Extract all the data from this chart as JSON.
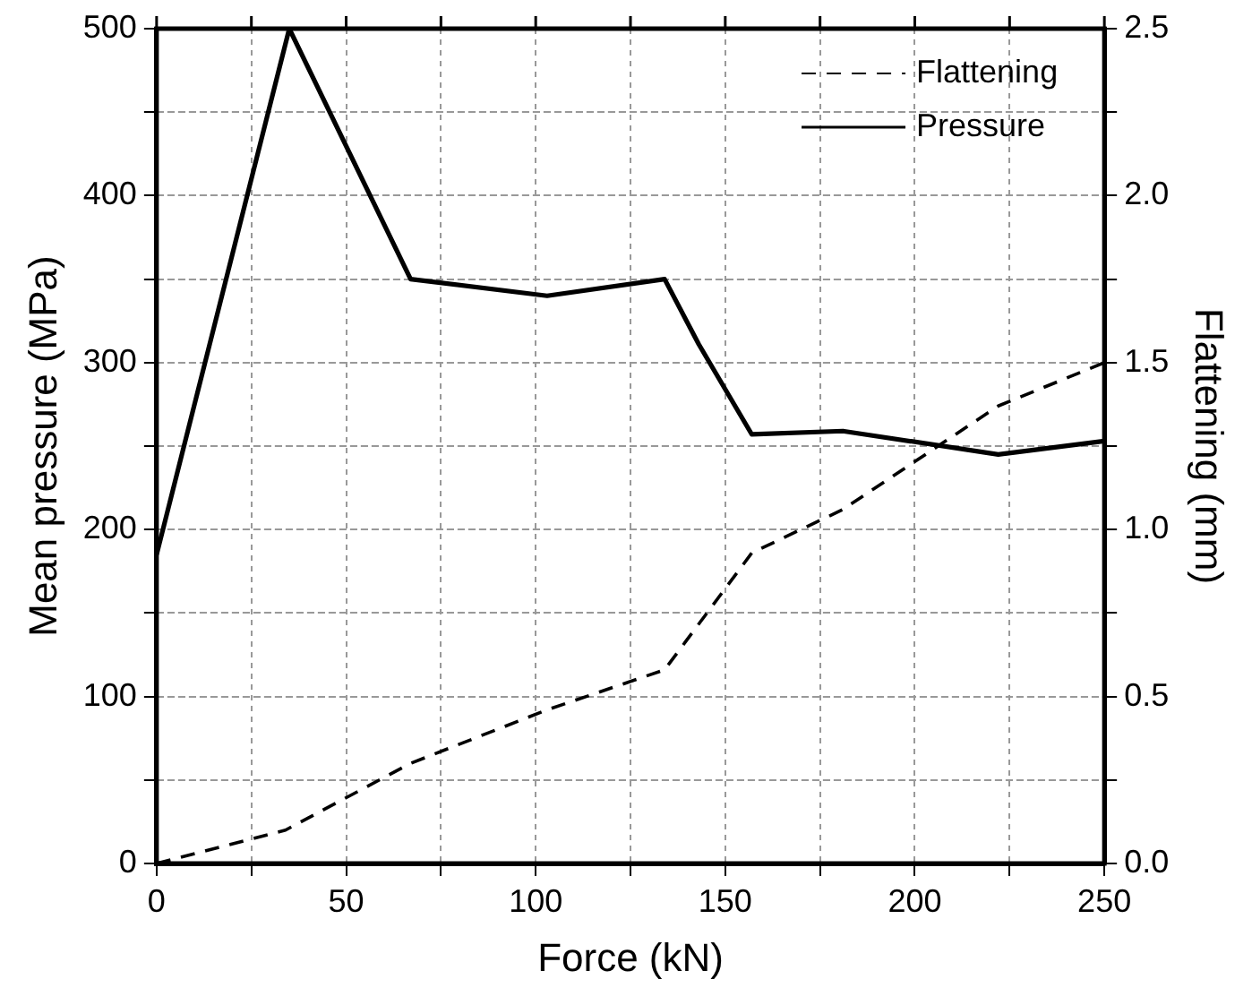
{
  "chart_data": {
    "type": "line",
    "xlabel": "Force (kN)",
    "ylabel": "Mean pressure (MPa)",
    "y2label": "Flattening (mm)",
    "xlim": [
      0,
      250
    ],
    "xticks": [
      0,
      {
        "value": 25,
        "label": null
      },
      50,
      {
        "value": 75,
        "label": null
      },
      100,
      {
        "value": 125,
        "label": null
      },
      150,
      {
        "value": 175,
        "label": null
      },
      200,
      {
        "value": 225,
        "label": null
      },
      250
    ],
    "ylim": [
      0,
      500
    ],
    "yticks": [
      0,
      {
        "value": 50,
        "label": null
      },
      100,
      {
        "value": 150,
        "label": null
      },
      200,
      {
        "value": 250,
        "label": null
      },
      300,
      {
        "value": 350,
        "label": null
      },
      400,
      {
        "value": 450,
        "label": null
      },
      500
    ],
    "y2lim": [
      0,
      2.5
    ],
    "y2ticks": [
      {
        "value": 0,
        "label": "0.0"
      },
      {
        "value": 0.25,
        "label": null
      },
      {
        "value": 0.5,
        "label": "0.5"
      },
      {
        "value": 0.75,
        "label": null
      },
      {
        "value": 1,
        "label": "1.0"
      },
      {
        "value": 1.25,
        "label": null
      },
      {
        "value": 1.5,
        "label": "1.5"
      },
      {
        "value": 1.75,
        "label": null
      },
      {
        "value": 2,
        "label": "2.0"
      },
      {
        "value": 2.25,
        "label": null
      },
      {
        "value": 2.5,
        "label": "2.5"
      }
    ],
    "grid": true,
    "legend": "top right",
    "marker": "none",
    "series": [
      {
        "name": "Flattening",
        "color": "#000000",
        "axis": "y2",
        "line_style": "dashed",
        "x": [
          0,
          34,
          67,
          103,
          134,
          157,
          181,
          222,
          250
        ],
        "values": [
          0,
          0.1,
          0.3,
          0.46,
          0.58,
          0.93,
          1.06,
          1.37,
          1.5
        ]
      },
      {
        "name": "Pressure",
        "color": "#000000",
        "line_style": "solid",
        "x": [
          0,
          35,
          67,
          103,
          134,
          143,
          157,
          181,
          222,
          250
        ],
        "values": [
          185,
          500,
          350,
          340,
          350,
          311,
          257,
          259,
          245,
          253
        ]
      }
    ]
  }
}
